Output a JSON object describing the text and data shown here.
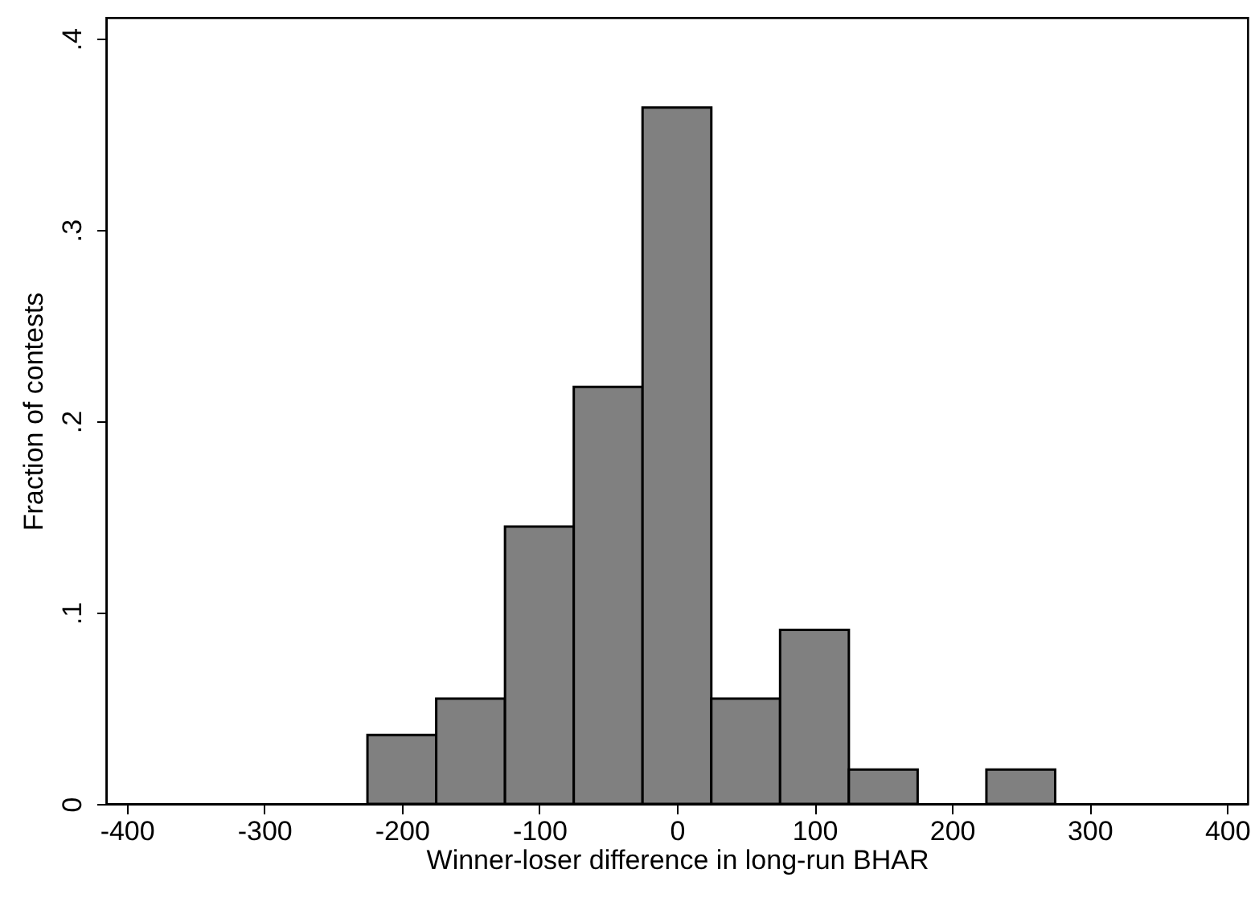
{
  "chart_data": {
    "type": "histogram",
    "xlabel": "Winner-loser difference in long-run BHAR",
    "ylabel": "Fraction of contests",
    "bins": [
      -225,
      -175,
      -125,
      -75,
      -25,
      25,
      75,
      125,
      175,
      225,
      275
    ],
    "values": [
      0.036,
      0.055,
      0.145,
      0.218,
      0.364,
      0.055,
      0.091,
      0.018,
      0,
      0.018
    ],
    "color": "#808080",
    "xlim": [
      -415,
      415
    ],
    "xticks": [
      -400,
      -300,
      -200,
      -100,
      0,
      100,
      200,
      300,
      400
    ],
    "ylim": [
      0,
      0.411
    ],
    "yticks": [
      {
        "value": 0,
        "label": "0"
      },
      {
        "value": 0.1,
        "label": ".1"
      },
      {
        "value": 0.2,
        "label": ".2"
      },
      {
        "value": 0.3,
        "label": ".3"
      },
      {
        "value": 0.4,
        "label": ".4"
      }
    ],
    "grid": false
  }
}
